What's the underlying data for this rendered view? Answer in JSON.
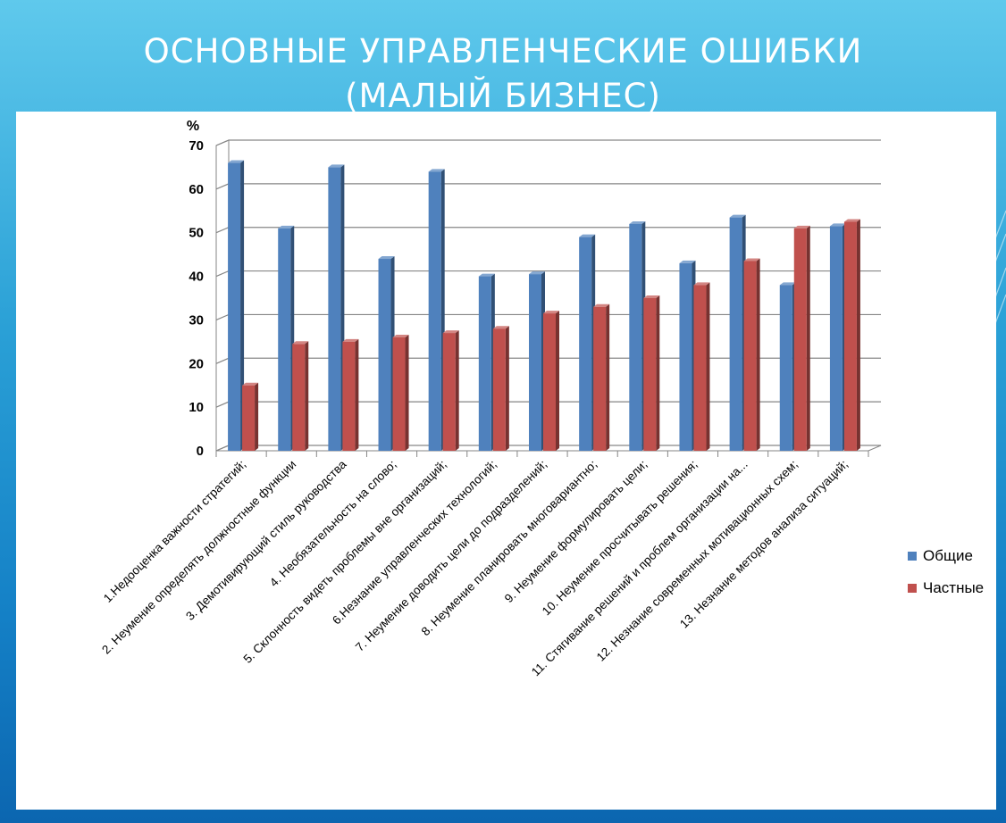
{
  "slide": {
    "title_line1": "ОСНОВНЫЕ УПРАВЛЕНЧЕСКИЕ ОШИБКИ",
    "title_line2": "(МАЛЫЙ БИЗНЕС)"
  },
  "colors": {
    "series_general": "#4f81bd",
    "series_private": "#c0504d",
    "background_top": "#5fc9ec",
    "background_bottom": "#0c66b0"
  },
  "chart_data": {
    "type": "bar",
    "ylabel": "%",
    "ylim": [
      0,
      70
    ],
    "yticks": [
      0,
      10,
      20,
      30,
      40,
      50,
      60,
      70
    ],
    "grid": true,
    "legend_position": "right",
    "categories": [
      "1.Недооценка важности  стратегий;",
      "2. Неумение определять должностные функции",
      "3. Демотивирующий  стиль руководства",
      "4. Необязательность на слово;",
      "5. Склонность видеть проблемы вне организаций;",
      "6.Незнание управленческих технологий;",
      "7. Неумение доводить  цели до подразделений;",
      "8. Неумение планировать многовариантно;",
      "9. Неумение формулировать цели;",
      "10. Неумение просчитывать  решения;",
      "11. Стягивание  решений и проблем организации на...",
      "12. Незнание современных мотивационных схем;",
      "13. Незнание методов анализа ситуаций;"
    ],
    "series": [
      {
        "name": "Общие",
        "values": [
          66,
          51,
          65,
          44,
          64,
          40,
          40.5,
          49,
          52,
          43,
          53.5,
          38,
          51.5
        ]
      },
      {
        "name": "Частные",
        "values": [
          15,
          24.5,
          25,
          26,
          27,
          28,
          31.5,
          33,
          35,
          38,
          43.5,
          51,
          52.5
        ]
      }
    ]
  }
}
